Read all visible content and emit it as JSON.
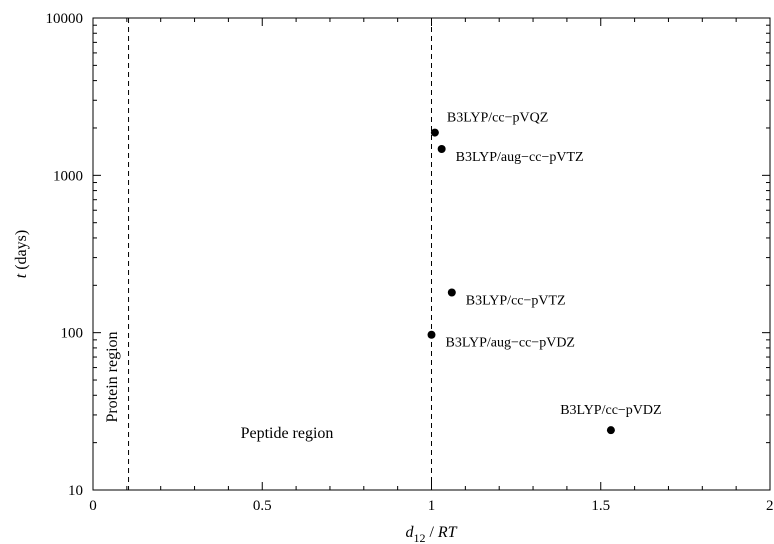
{
  "chart_data": {
    "type": "scatter",
    "title": "",
    "xlabel": {
      "main": "d",
      "sub": "12",
      "rest": " / ",
      "italic": "RT"
    },
    "ylabel": {
      "italic": "t",
      "rest": " (days)"
    },
    "xlim": [
      0,
      2
    ],
    "ylim": [
      10,
      10000
    ],
    "yscale": "log",
    "grid": false,
    "x_ticks": [
      {
        "value": 0,
        "label": "0"
      },
      {
        "value": 0.5,
        "label": "0.5"
      },
      {
        "value": 1,
        "label": "1"
      },
      {
        "value": 1.5,
        "label": "1.5"
      },
      {
        "value": 2,
        "label": "2"
      }
    ],
    "y_ticks": [
      {
        "value": 10,
        "label": "10"
      },
      {
        "value": 100,
        "label": "100"
      },
      {
        "value": 1000,
        "label": "1000"
      },
      {
        "value": 10000,
        "label": "10000"
      }
    ],
    "vlines": [
      {
        "x": 0.105,
        "style": "dashed"
      },
      {
        "x": 1.0,
        "style": "dashed"
      }
    ],
    "points": [
      {
        "x": 1.01,
        "y": 1870,
        "label": "B3LYP/cc−pVQZ",
        "label_pos": "above-right"
      },
      {
        "x": 1.03,
        "y": 1470,
        "label": "B3LYP/aug−cc−pVTZ",
        "label_pos": "below-right"
      },
      {
        "x": 1.06,
        "y": 180,
        "label": "B3LYP/cc−pVTZ",
        "label_pos": "below-right"
      },
      {
        "x": 1.0,
        "y": 97,
        "label": "B3LYP/aug−cc−pVDZ",
        "label_pos": "below-right"
      },
      {
        "x": 1.53,
        "y": 24,
        "label": "B3LYP/cc−pVDZ",
        "label_pos": "above"
      }
    ],
    "region_labels": {
      "protein": "Protein region",
      "peptide": "Peptide region"
    }
  }
}
